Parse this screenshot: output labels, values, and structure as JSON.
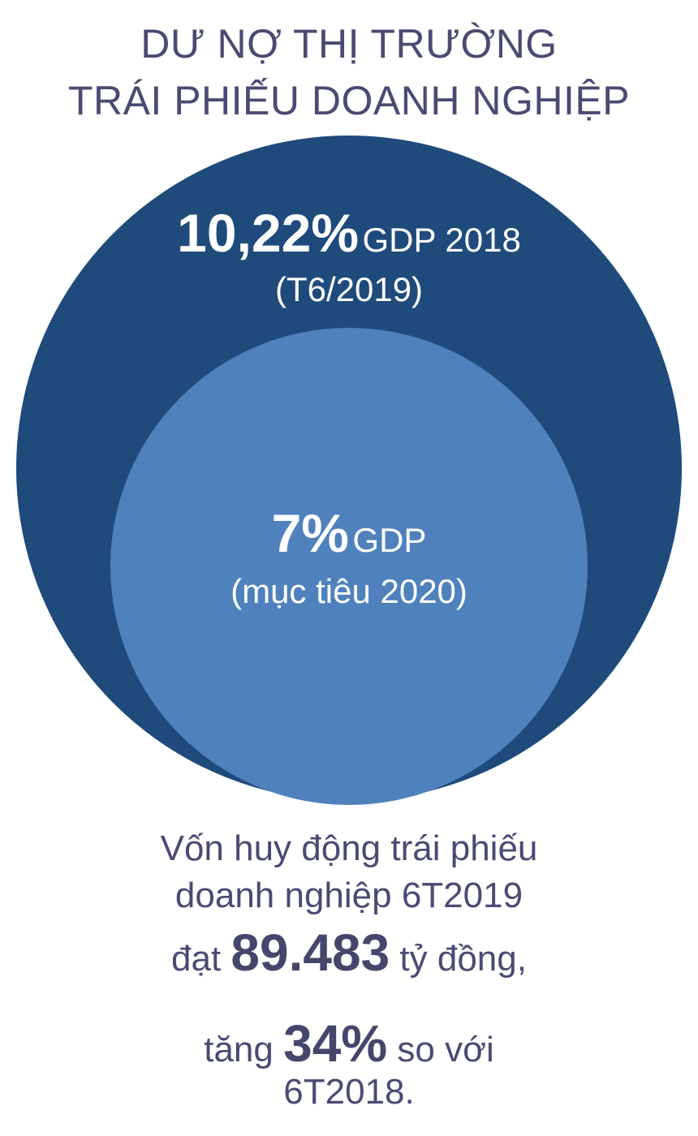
{
  "title": {
    "line1": "DƯ NỢ THỊ TRƯỜNG",
    "line2": "TRÁI PHIẾU DOANH NGHIỆP"
  },
  "chart_data": {
    "type": "nested-circles",
    "unit": "% GDP",
    "items": [
      {
        "value": 10.22,
        "value_label": "10,22%",
        "unit_label": "GDP 2018",
        "sublabel": "(T6/2019)",
        "color": "#1f4a7c"
      },
      {
        "value": 7,
        "value_label": "7%",
        "unit_label": "GDP",
        "sublabel": "(mục tiêu 2020)",
        "color": "#4f81bd"
      }
    ]
  },
  "summary": {
    "line1": "Vốn huy động trái phiếu",
    "line2": "doanh nghiệp 6T2019",
    "line3_pre": "đạt ",
    "line3_value": "89.483",
    "line3_post": " tỷ đồng,",
    "line4_pre": "tăng ",
    "line4_value": "34%",
    "line4_post": " so với",
    "line5": "6T2018."
  }
}
